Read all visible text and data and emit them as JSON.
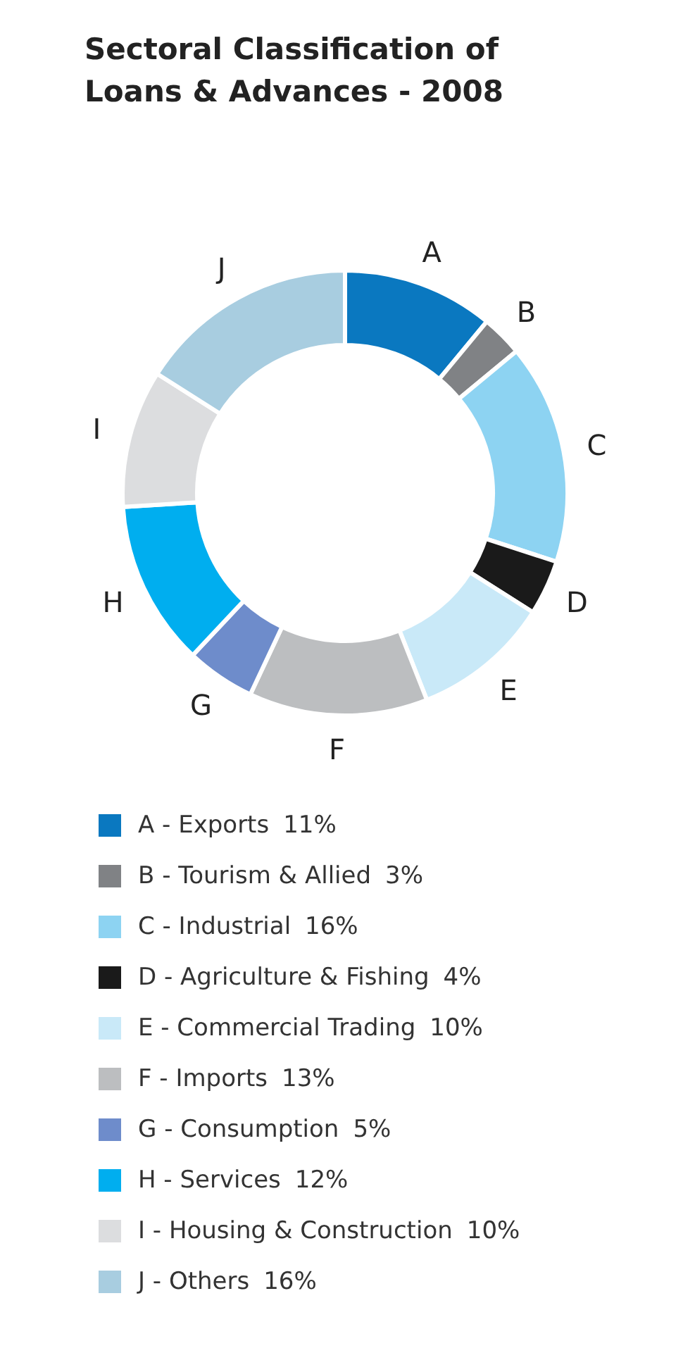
{
  "chart_data": {
    "type": "donut",
    "title": "Sectoral Classification of Loans & Advances - 2008",
    "categories": [
      "A - Exports",
      "B - Tourism & Allied",
      "C - Industrial",
      "D - Agriculture & Fishing",
      "E - Commercial Trading",
      "F - Imports",
      "G - Consumption",
      "H - Services",
      "I - Housing & Construction",
      "J - Others"
    ],
    "values": [
      11,
      3,
      16,
      4,
      10,
      13,
      5,
      12,
      10,
      16
    ],
    "value_labels": [
      "11%",
      "3%",
      "16%",
      "4%",
      "10%",
      "13%",
      "5%",
      "12%",
      "10%",
      "16%"
    ],
    "colors": [
      "#0a78c0",
      "#808285",
      "#8dd3f2",
      "#1a1a1a",
      "#c9e9f8",
      "#bcbec0",
      "#6e8ccb",
      "#00aeef",
      "#dcdddf",
      "#a8cde0"
    ],
    "annotations": [
      "A",
      "B",
      "C",
      "D",
      "E",
      "F",
      "G",
      "H",
      "I",
      "J"
    ],
    "legend": "bottom"
  }
}
